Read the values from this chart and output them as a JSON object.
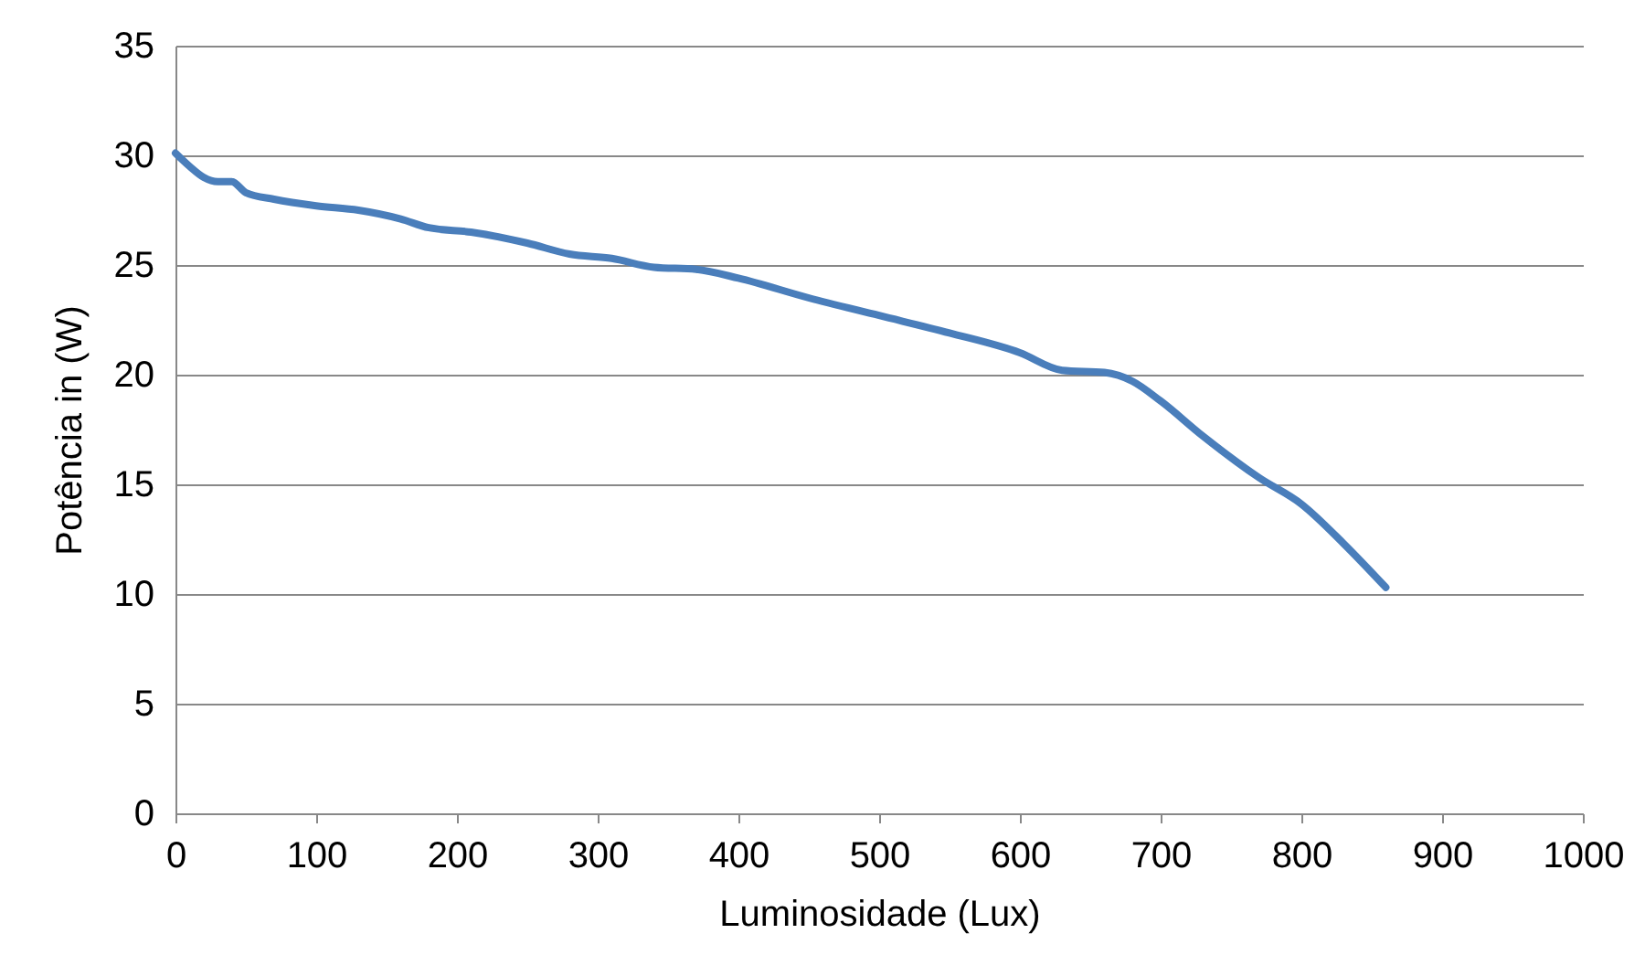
{
  "chart_data": {
    "type": "line",
    "xlabel": "Luminosidade (Lux)",
    "ylabel": "Potência in (W)",
    "x": [
      0,
      10,
      20,
      30,
      40,
      50,
      70,
      100,
      130,
      160,
      180,
      210,
      250,
      280,
      310,
      340,
      370,
      400,
      450,
      500,
      550,
      600,
      630,
      660,
      680,
      700,
      730,
      770,
      800,
      830,
      860
    ],
    "series": [
      {
        "color": "#4a7ebb",
        "values": [
          30.1,
          29.5,
          29.0,
          28.8,
          28.8,
          28.3,
          28.0,
          27.7,
          27.5,
          27.1,
          26.7,
          26.5,
          26.0,
          25.5,
          25.3,
          24.9,
          24.8,
          24.4,
          23.5,
          22.7,
          21.9,
          21.0,
          20.2,
          20.1,
          19.7,
          18.8,
          17.2,
          15.3,
          14.1,
          12.3,
          10.3
        ]
      }
    ],
    "xlim": [
      0,
      1000
    ],
    "xticks": [
      0,
      100,
      200,
      300,
      400,
      500,
      600,
      700,
      800,
      900,
      1000
    ],
    "ylim": [
      0,
      35
    ],
    "yticks": [
      0,
      5,
      10,
      15,
      20,
      25,
      30,
      35
    ],
    "grid": "y",
    "legend": false,
    "marker": "none",
    "line_style": "solid"
  }
}
